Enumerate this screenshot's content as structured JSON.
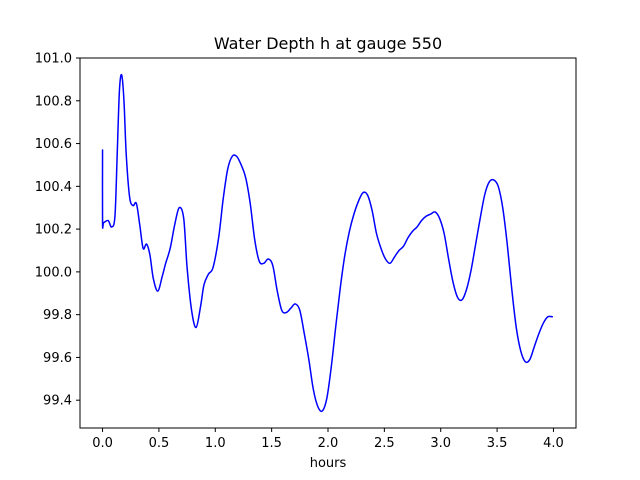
{
  "chart_data": {
    "type": "line",
    "title": "Water Depth h at gauge 550",
    "xlabel": "hours",
    "ylabel": "",
    "xlim": [
      -0.2,
      4.2
    ],
    "ylim": [
      99.27,
      101.0
    ],
    "x_ticks": [
      0.0,
      0.5,
      1.0,
      1.5,
      2.0,
      2.5,
      3.0,
      3.5,
      4.0
    ],
    "x_tick_labels": [
      "0.0",
      "0.5",
      "1.0",
      "1.5",
      "2.0",
      "2.5",
      "3.0",
      "3.5",
      "4.0"
    ],
    "y_ticks": [
      99.4,
      99.6,
      99.8,
      100.0,
      100.2,
      100.4,
      100.6,
      100.8,
      101.0
    ],
    "y_tick_labels": [
      "99.4",
      "99.6",
      "99.8",
      "100.0",
      "100.2",
      "100.4",
      "100.6",
      "100.8",
      "101.0"
    ],
    "grid": false,
    "series": [
      {
        "color": "#0000ff",
        "x": [
          0.0,
          0.0,
          0.01,
          0.05,
          0.08,
          0.11,
          0.13,
          0.15,
          0.17,
          0.19,
          0.21,
          0.24,
          0.27,
          0.3,
          0.33,
          0.36,
          0.39,
          0.42,
          0.45,
          0.49,
          0.53,
          0.56,
          0.6,
          0.64,
          0.68,
          0.72,
          0.75,
          0.79,
          0.83,
          0.87,
          0.9,
          0.94,
          0.98,
          1.03,
          1.07,
          1.11,
          1.15,
          1.19,
          1.23,
          1.27,
          1.31,
          1.35,
          1.39,
          1.43,
          1.47,
          1.51,
          1.55,
          1.59,
          1.63,
          1.67,
          1.71,
          1.75,
          1.79,
          1.83,
          1.87,
          1.91,
          1.95,
          1.99,
          2.03,
          2.07,
          2.11,
          2.15,
          2.19,
          2.23,
          2.27,
          2.31,
          2.35,
          2.39,
          2.43,
          2.47,
          2.51,
          2.55,
          2.59,
          2.63,
          2.67,
          2.71,
          2.75,
          2.79,
          2.83,
          2.87,
          2.91,
          2.95,
          2.99,
          3.03,
          3.07,
          3.11,
          3.15,
          3.19,
          3.23,
          3.27,
          3.31,
          3.35,
          3.39,
          3.43,
          3.47,
          3.51,
          3.55,
          3.59,
          3.63,
          3.67,
          3.71,
          3.75,
          3.79,
          3.83,
          3.87,
          3.91,
          3.95,
          3.99
        ],
        "values": [
          100.57,
          100.23,
          100.23,
          100.24,
          100.21,
          100.26,
          100.55,
          100.85,
          100.92,
          100.8,
          100.55,
          100.35,
          100.31,
          100.32,
          100.22,
          100.11,
          100.13,
          100.08,
          99.97,
          99.91,
          99.98,
          100.04,
          100.11,
          100.22,
          100.3,
          100.25,
          100.02,
          99.82,
          99.74,
          99.84,
          99.94,
          99.99,
          100.02,
          100.16,
          100.34,
          100.48,
          100.54,
          100.54,
          100.5,
          100.44,
          100.32,
          100.15,
          100.05,
          100.04,
          100.06,
          100.03,
          99.91,
          99.82,
          99.81,
          99.83,
          99.85,
          99.82,
          99.71,
          99.59,
          99.45,
          99.37,
          99.35,
          99.41,
          99.56,
          99.75,
          99.93,
          100.08,
          100.19,
          100.27,
          100.33,
          100.37,
          100.36,
          100.29,
          100.18,
          100.11,
          100.06,
          100.04,
          100.07,
          100.1,
          100.12,
          100.16,
          100.19,
          100.21,
          100.24,
          100.26,
          100.27,
          100.28,
          100.25,
          100.18,
          100.06,
          99.95,
          99.88,
          99.87,
          99.92,
          100.01,
          100.13,
          100.25,
          100.36,
          100.42,
          100.43,
          100.4,
          100.3,
          100.13,
          99.92,
          99.74,
          99.63,
          99.58,
          99.59,
          99.65,
          99.71,
          99.76,
          99.79,
          99.79
        ]
      }
    ]
  }
}
